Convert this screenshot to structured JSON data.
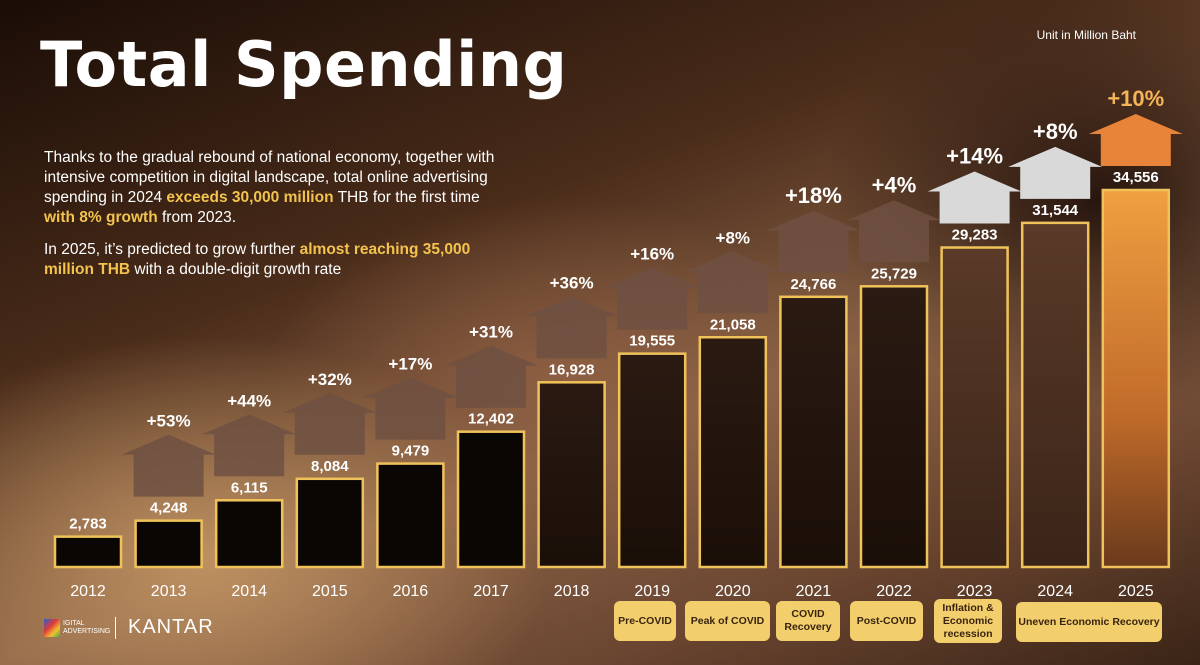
{
  "header": {
    "title": "Total Spending",
    "unit": "Unit in Million Baht"
  },
  "description": {
    "p1_a": "Thanks to the gradual rebound of national economy, together with intensive competition in digital landscape, total online advertising spending in 2024 ",
    "p1_h1": "exceeds 30,000 million",
    "p1_b": " THB for the first time ",
    "p1_h2": "with 8% growth",
    "p1_c": " from 2023.",
    "p2_a": "In 2025, it’s predicted to grow further ",
    "p2_h": "almost reaching 35,000 million THB",
    "p2_b": " with a double-digit growth rate"
  },
  "chart_data": {
    "type": "bar",
    "categories": [
      "2012",
      "2013",
      "2014",
      "2015",
      "2016",
      "2017",
      "2018",
      "2019",
      "2020",
      "2021",
      "2022",
      "2023",
      "2024",
      "2025"
    ],
    "values": [
      2783,
      4248,
      6115,
      8084,
      9479,
      12402,
      16928,
      19555,
      21058,
      24766,
      25729,
      29283,
      31544,
      34556
    ],
    "value_labels": [
      "2,783",
      "4,248",
      "6,115",
      "8,084",
      "9,479",
      "12,402",
      "16,928",
      "19,555",
      "21,058",
      "24,766",
      "25,729",
      "29,283",
      "31,544",
      "34,556"
    ],
    "growth_labels": [
      "",
      "+53%",
      "+44%",
      "+32%",
      "+17%",
      "+31%",
      "+36%",
      "+16%",
      "+8%",
      "+18%",
      "+4%",
      "+14%",
      "+8%",
      "+10%"
    ],
    "ylim": [
      0,
      36000
    ],
    "grid": false,
    "colors": {
      "bar_outline": "#f0c35a",
      "early_bar": "#0a0604",
      "house": "#6e5042",
      "house_recent": "#d9d9d9",
      "forecast": "#e8843a"
    }
  },
  "phases": [
    {
      "label": "Pre-COVID"
    },
    {
      "label": "Peak of COVID"
    },
    {
      "label": "COVID Recovery"
    },
    {
      "label": "Post-COVID"
    },
    {
      "label": "Inflation & Economic recession"
    },
    {
      "label": "Uneven Economic Recovery"
    }
  ],
  "footer": {
    "logo1": "IGITAL ADVERTISING",
    "logo2": "KANTAR"
  }
}
